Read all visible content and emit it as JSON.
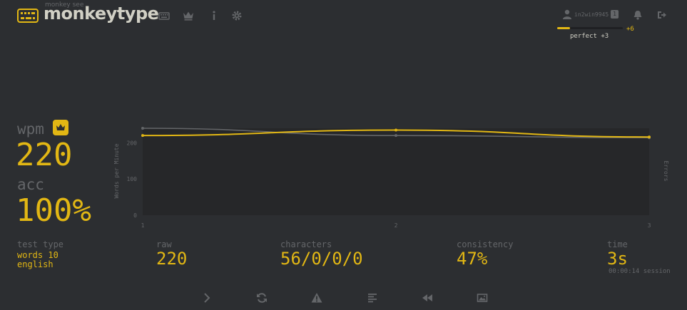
{
  "header": {
    "logo_subtitle": "monkey see",
    "logo_text": "monkeytype",
    "nav": [
      {
        "icon": "keyboard-icon"
      },
      {
        "icon": "crown-icon"
      },
      {
        "icon": "info-icon"
      },
      {
        "icon": "gear-icon"
      }
    ],
    "username": "in2win9945",
    "level": "1",
    "xp_progress": 0.2,
    "xp_gain": "+6",
    "xp_note": "perfect +3"
  },
  "result": {
    "wpm_label": "wpm",
    "wpm_value": "220",
    "acc_label": "acc",
    "acc_value": "100%",
    "test_type_label": "test type",
    "test_type_line1": "words 10",
    "test_type_line2": "english",
    "raw_label": "raw",
    "raw_value": "220",
    "characters_label": "characters",
    "characters_value": "56/0/0/0",
    "consistency_label": "consistency",
    "consistency_value": "47%",
    "time_label": "time",
    "time_value": "3s",
    "session_time": "00:00:14 session"
  },
  "chart_data": {
    "type": "line",
    "x": [
      1,
      2,
      3
    ],
    "xlim": [
      1,
      3
    ],
    "ylim": [
      0,
      240
    ],
    "yticks": [
      "0",
      "100",
      "200"
    ],
    "xticks": [
      "1",
      "2",
      "3"
    ],
    "ylabel": "Words per Minute",
    "y2label": "Errors",
    "series": [
      {
        "values": [
          240,
          220,
          214
        ],
        "color": "#646669"
      },
      {
        "values": [
          220,
          235,
          216
        ],
        "color": "#e2b714"
      }
    ]
  },
  "bottom_icons": [
    "next-test-icon",
    "restart-icon",
    "warning-icon",
    "words-list-icon",
    "replay-icon",
    "screenshot-icon"
  ],
  "colors": {
    "accent": "#e2b714",
    "sub": "#646669",
    "bg": "#2c2e31",
    "text": "#d1d0c5"
  }
}
